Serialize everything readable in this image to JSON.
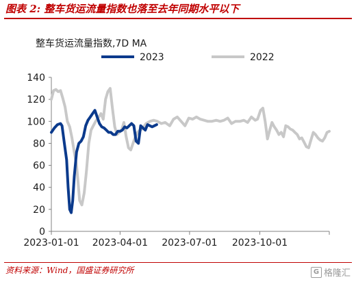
{
  "header": {
    "title": "图表 2:  整车货运流量指数也落至去年同期水平以下"
  },
  "footer": {
    "source": "资料来源：Wind，国盛证券研究所",
    "watermark_logo": "G",
    "watermark_text": "格隆汇"
  },
  "colors": {
    "accent": "#c00000",
    "series_2023": "#0b3a8c",
    "series_2022": "#c8c8c8",
    "axis": "#808080",
    "text": "#1a1a1a"
  },
  "chart_data": {
    "type": "line",
    "title": "整车货运流量指数,7D MA",
    "xlabel": "",
    "ylabel": "",
    "ylim": [
      0,
      140
    ],
    "y_ticks": [
      0,
      20,
      40,
      60,
      80,
      100,
      120,
      140
    ],
    "x_range": [
      "2023-01-01",
      "2023-12-31"
    ],
    "x_ticks": [
      "2023-01-01",
      "2023-04-01",
      "2023-07-01",
      "2023-10-01"
    ],
    "legend_position": "top",
    "grid": false,
    "series": [
      {
        "name": "2023",
        "color": "#0b3a8c",
        "x": [
          "2023-01-01",
          "2023-01-05",
          "2023-01-09",
          "2023-01-13",
          "2023-01-15",
          "2023-01-18",
          "2023-01-21",
          "2023-01-23",
          "2023-01-25",
          "2023-01-27",
          "2023-01-29",
          "2023-01-31",
          "2023-02-03",
          "2023-02-06",
          "2023-02-09",
          "2023-02-12",
          "2023-02-15",
          "2023-02-18",
          "2023-02-21",
          "2023-02-24",
          "2023-02-27",
          "2023-03-02",
          "2023-03-05",
          "2023-03-08",
          "2023-03-11",
          "2023-03-14",
          "2023-03-17",
          "2023-03-20",
          "2023-03-23",
          "2023-03-26",
          "2023-03-29",
          "2023-04-01",
          "2023-04-04",
          "2023-04-07",
          "2023-04-10",
          "2023-04-13",
          "2023-04-16",
          "2023-04-19",
          "2023-04-22",
          "2023-04-25",
          "2023-04-28",
          "2023-05-01",
          "2023-05-04",
          "2023-05-07",
          "2023-05-10",
          "2023-05-13",
          "2023-05-16",
          "2023-05-19"
        ],
        "values": [
          90,
          94,
          97,
          98,
          96,
          80,
          65,
          40,
          20,
          17,
          28,
          50,
          72,
          80,
          82,
          86,
          96,
          101,
          104,
          107,
          110,
          104,
          98,
          95,
          94,
          92,
          90,
          90,
          88,
          88,
          91,
          91,
          92,
          95,
          94,
          96,
          98,
          96,
          82,
          80,
          96,
          94,
          92,
          97,
          96,
          95,
          96,
          97
        ]
      },
      {
        "name": "2022",
        "color": "#c8c8c8",
        "x": [
          "2023-01-01",
          "2023-01-04",
          "2023-01-07",
          "2023-01-10",
          "2023-01-13",
          "2023-01-16",
          "2023-01-19",
          "2023-01-22",
          "2023-01-25",
          "2023-01-28",
          "2023-01-31",
          "2023-02-03",
          "2023-02-05",
          "2023-02-07",
          "2023-02-10",
          "2023-02-13",
          "2023-02-16",
          "2023-02-19",
          "2023-02-22",
          "2023-02-25",
          "2023-02-28",
          "2023-03-03",
          "2023-03-05",
          "2023-03-07",
          "2023-03-10",
          "2023-03-13",
          "2023-03-16",
          "2023-03-19",
          "2023-03-22",
          "2023-03-25",
          "2023-03-28",
          "2023-03-31",
          "2023-04-03",
          "2023-04-06",
          "2023-04-09",
          "2023-04-12",
          "2023-04-15",
          "2023-04-18",
          "2023-04-21",
          "2023-04-24",
          "2023-04-27",
          "2023-04-30",
          "2023-05-05",
          "2023-05-10",
          "2023-05-15",
          "2023-05-20",
          "2023-05-25",
          "2023-05-30",
          "2023-06-05",
          "2023-06-10",
          "2023-06-15",
          "2023-06-20",
          "2023-06-25",
          "2023-06-30",
          "2023-07-05",
          "2023-07-10",
          "2023-07-15",
          "2023-07-20",
          "2023-07-25",
          "2023-07-30",
          "2023-08-05",
          "2023-08-10",
          "2023-08-15",
          "2023-08-20",
          "2023-08-25",
          "2023-08-30",
          "2023-09-05",
          "2023-09-10",
          "2023-09-15",
          "2023-09-20",
          "2023-09-25",
          "2023-09-28",
          "2023-10-02",
          "2023-10-05",
          "2023-10-08",
          "2023-10-11",
          "2023-10-14",
          "2023-10-17",
          "2023-10-20",
          "2023-10-23",
          "2023-10-26",
          "2023-10-29",
          "2023-11-01",
          "2023-11-04",
          "2023-11-07",
          "2023-11-10",
          "2023-11-13",
          "2023-11-16",
          "2023-11-19",
          "2023-11-22",
          "2023-11-25",
          "2023-11-28",
          "2023-12-01",
          "2023-12-04",
          "2023-12-07",
          "2023-12-10",
          "2023-12-13",
          "2023-12-16",
          "2023-12-19",
          "2023-12-22",
          "2023-12-25",
          "2023-12-28",
          "2023-12-31"
        ],
        "values": [
          120,
          128,
          129,
          127,
          128,
          121,
          113,
          100,
          95,
          85,
          72,
          60,
          45,
          28,
          24,
          35,
          55,
          80,
          92,
          96,
          100,
          103,
          105,
          107,
          102,
          120,
          127,
          130,
          112,
          95,
          88,
          90,
          92,
          99,
          86,
          76,
          74,
          80,
          86,
          90,
          92,
          93,
          98,
          100,
          101,
          100,
          98,
          99,
          96,
          102,
          104,
          100,
          96,
          103,
          102,
          104,
          102,
          101,
          100,
          100,
          101,
          100,
          101,
          103,
          98,
          100,
          100,
          101,
          99,
          104,
          101,
          102,
          110,
          112,
          100,
          84,
          92,
          99,
          95,
          92,
          88,
          90,
          86,
          96,
          95,
          93,
          92,
          90,
          88,
          84,
          85,
          81,
          77,
          76,
          83,
          90,
          88,
          85,
          83,
          82,
          85,
          90,
          91
        ]
      }
    ]
  }
}
